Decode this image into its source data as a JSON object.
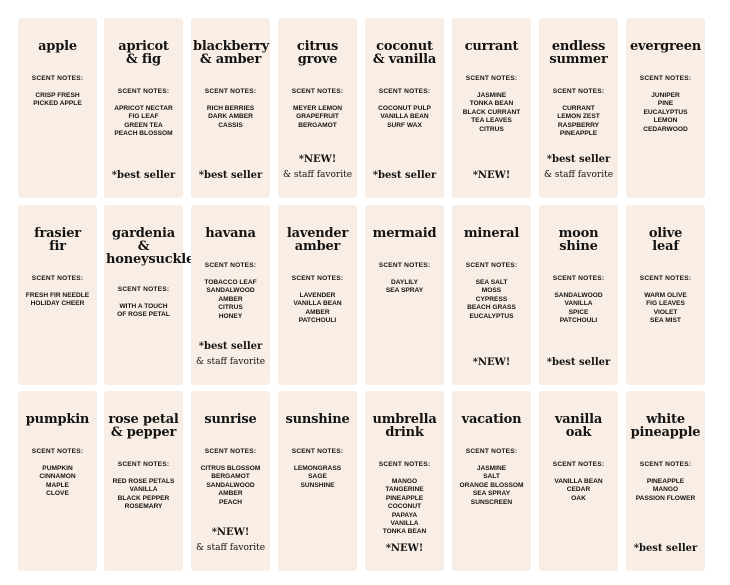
{
  "notes_heading": "SCENT NOTES:",
  "labels": [
    {
      "name": "apple",
      "notes": "CRISP FRESH\nPICKED APPLE",
      "tag": "",
      "tag2": ""
    },
    {
      "name": "apricot\n& fig",
      "notes": "APRICOT NECTAR\nFIG LEAF\nGREEN TEA\nPEACH BLOSSOM",
      "tag": "*best seller",
      "tag2": ""
    },
    {
      "name": "blackberry\n& amber",
      "notes": "RICH BERRIES\nDARK AMBER\nCASSIS",
      "tag": "*best seller",
      "tag2": ""
    },
    {
      "name": "citrus\ngrove",
      "notes": "MEYER LEMON\nGRAPEFRUIT\nBERGAMOT",
      "tag": "*NEW!",
      "tag2": "& staff favorite"
    },
    {
      "name": "coconut\n& vanilla",
      "notes": "COCONUT PULP\nVANILLA BEAN\nSURF WAX",
      "tag": "*best seller",
      "tag2": ""
    },
    {
      "name": "currant",
      "notes": "JASMINE\nTONKA BEAN\nBLACK CURRANT\nTEA LEAVES\nCITRUS",
      "tag": "*NEW!",
      "tag2": ""
    },
    {
      "name": "endless\nsummer",
      "notes": "CURRANT\nLEMON ZEST\nRASPBERRY\nPINEAPPLE",
      "tag": "*best seller",
      "tag2": "& staff favorite"
    },
    {
      "name": "evergreen",
      "notes": "JUNIPER\nPINE\nEUCALYPTUS\nLEMON\nCEDARWOOD",
      "tag": "",
      "tag2": ""
    },
    {
      "name": "frasier\nfir",
      "notes": "FRESH FIR NEEDLE\nHOLIDAY CHEER",
      "tag": "",
      "tag2": ""
    },
    {
      "name": "gardenia\n&\nhoneysuckle",
      "notes": "WITH A TOUCH\nOF ROSE PETAL",
      "tag": "",
      "tag2": ""
    },
    {
      "name": "havana",
      "notes": "TOBACCO LEAF\nSANDALWOOD\nAMBER\nCITRUS\nHONEY",
      "tag": "*best seller",
      "tag2": "& staff favorite"
    },
    {
      "name": "lavender\namber",
      "notes": "LAVENDER\nVANILLA BEAN\nAMBER\nPATCHOULI",
      "tag": "",
      "tag2": ""
    },
    {
      "name": "mermaid",
      "notes": "DAYLILY\nSEA SPRAY",
      "tag": "",
      "tag2": ""
    },
    {
      "name": "mineral",
      "notes": "SEA SALT\nMOSS\nCYPRESS\nBEACH GRASS\nEUCALYPTUS",
      "tag": "*NEW!",
      "tag2": ""
    },
    {
      "name": "moon\nshine",
      "notes": "SANDALWOOD\nVANILLA\nSPICE\nPATCHOULI",
      "tag": "*best seller",
      "tag2": ""
    },
    {
      "name": "olive\nleaf",
      "notes": "WARM OLIVE\nFIG LEAVES\nVIOLET\nSEA MIST",
      "tag": "",
      "tag2": ""
    },
    {
      "name": "pumpkin",
      "notes": "PUMPKIN\nCINNAMON\nMAPLE\nCLOVE",
      "tag": "",
      "tag2": ""
    },
    {
      "name": "rose petal\n& pepper",
      "notes": "RED ROSE PETALS\nVANILLA\nBLACK PEPPER\nROSEMARY",
      "tag": "",
      "tag2": ""
    },
    {
      "name": "sunrise",
      "notes": "CITRUS BLOSSOM\nBERGAMOT\nSANDALWOOD\nAMBER\nPEACH",
      "tag": "*NEW!",
      "tag2": "& staff favorite"
    },
    {
      "name": "sunshine",
      "notes": "LEMONGRASS\nSAGE\nSUNSHINE",
      "tag": "",
      "tag2": ""
    },
    {
      "name": "umbrella\ndrink",
      "notes": "MANGO\nTANGERINE\nPINEAPPLE\nCOCONUT\nPAPAYA\nVANILLA\nTONKA BEAN",
      "tag": "*NEW!",
      "tag2": ""
    },
    {
      "name": "vacation",
      "notes": "JASMINE\nSALT\nORANGE BLOSSOM\nSEA SPRAY\nSUNSCREEN",
      "tag": "",
      "tag2": ""
    },
    {
      "name": "vanilla\noak",
      "notes": "VANILLA BEAN\nCEDAR\nOAK",
      "tag": "",
      "tag2": ""
    },
    {
      "name": "white\npineapple",
      "notes": "PINEAPPLE\nMANGO\nPASSION FLOWER",
      "tag": "*best seller",
      "tag2": ""
    }
  ]
}
